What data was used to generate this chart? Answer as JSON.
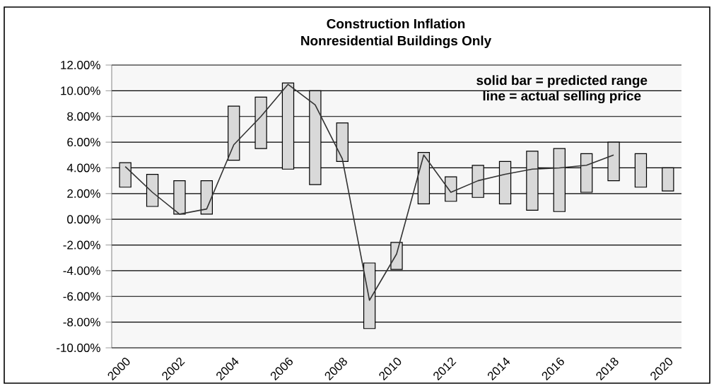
{
  "chart_data": {
    "type": "bar",
    "title": "Construction  Inflation",
    "subtitle": "Nonresidential Buildings Only",
    "categories": [
      "2000",
      null,
      "2002",
      null,
      "2004",
      null,
      "2006",
      null,
      "2008",
      null,
      "2010",
      null,
      "2012",
      null,
      "2014",
      null,
      "2016",
      null,
      "2018",
      null,
      "2020"
    ],
    "series": [
      {
        "color": "#d9d9d9",
        "base": [
          2.5,
          1.0,
          0.4,
          0.4,
          4.6,
          5.5,
          3.9,
          2.7,
          4.5,
          -8.5,
          -3.9,
          1.2,
          1.4,
          1.7,
          1.2,
          0.7,
          0.6,
          2.1,
          3.0,
          2.5,
          2.2
        ],
        "values": [
          1.9,
          2.5,
          2.6,
          2.6,
          4.2,
          4.0,
          6.7,
          7.3,
          3.0,
          5.1,
          2.1,
          4.0,
          1.9,
          2.5,
          3.3,
          4.6,
          4.9,
          3.0,
          3.0,
          2.6,
          1.8
        ]
      },
      {
        "type": "line",
        "color": "#333333",
        "values": [
          4.1,
          2.1,
          0.4,
          0.8,
          5.8,
          8.0,
          10.5,
          8.9,
          4.7,
          -6.3,
          -2.7,
          5.0,
          2.1,
          3.0,
          3.5,
          3.9,
          4.0,
          4.2,
          5.0,
          null,
          null
        ]
      }
    ],
    "ylim": [
      -10,
      12
    ],
    "yticks": [
      {
        "value": -10,
        "label": "-10.00%"
      },
      {
        "value": -8,
        "label": "-8.00%"
      },
      {
        "value": -6,
        "label": "-6.00%"
      },
      {
        "value": -4,
        "label": "-4.00%"
      },
      {
        "value": -2,
        "label": "-2.00%"
      },
      {
        "value": 0,
        "label": "0.00%"
      },
      {
        "value": 2,
        "label": "2.00%"
      },
      {
        "value": 4,
        "label": "4.00%"
      },
      {
        "value": 6,
        "label": "6.00%"
      },
      {
        "value": 8,
        "label": "8.00%"
      },
      {
        "value": 10,
        "label": "10.00%"
      },
      {
        "value": 12,
        "label": "12.00%"
      }
    ],
    "grid": "y",
    "annotations": [
      "solid bar = predicted range",
      "line = actual selling price"
    ]
  }
}
